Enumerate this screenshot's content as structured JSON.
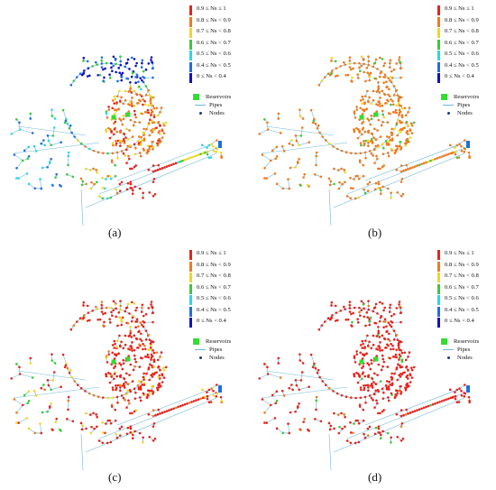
{
  "colors": {
    "pipe": "#6fb8d6",
    "reservoir": "#33dd33",
    "node": "#1a3a8a",
    "classes": [
      "#e8241c",
      "#f07a1e",
      "#f0d820",
      "#3cc83c",
      "#28d8e8",
      "#1f6fe0",
      "#1010c8"
    ]
  },
  "legend": {
    "classes": [
      "0.9 ≤ Ns ≤ 1",
      "0.8 ≤ Ns < 0.9",
      "0.7 ≤ Ns < 0.8",
      "0.6 ≤ Ns < 0.7",
      "0.5 ≤ Ns < 0.6",
      "0.4 ≤ Ns < 0.5",
      "0 ≤ Ns < 0.4"
    ],
    "reservoirs": "Reservoirs",
    "pipes": "Pipes",
    "nodes": "Nodes"
  },
  "panels": [
    {
      "caption": "(a)",
      "dominant_class": "mixed"
    },
    {
      "caption": "(b)",
      "dominant_class": "0.8 ≤ Ns < 0.9"
    },
    {
      "caption": "(c)",
      "dominant_class": "0.9 ≤ Ns ≤ 1"
    },
    {
      "caption": "(d)",
      "dominant_class": "0.9 ≤ Ns ≤ 1"
    }
  ]
}
